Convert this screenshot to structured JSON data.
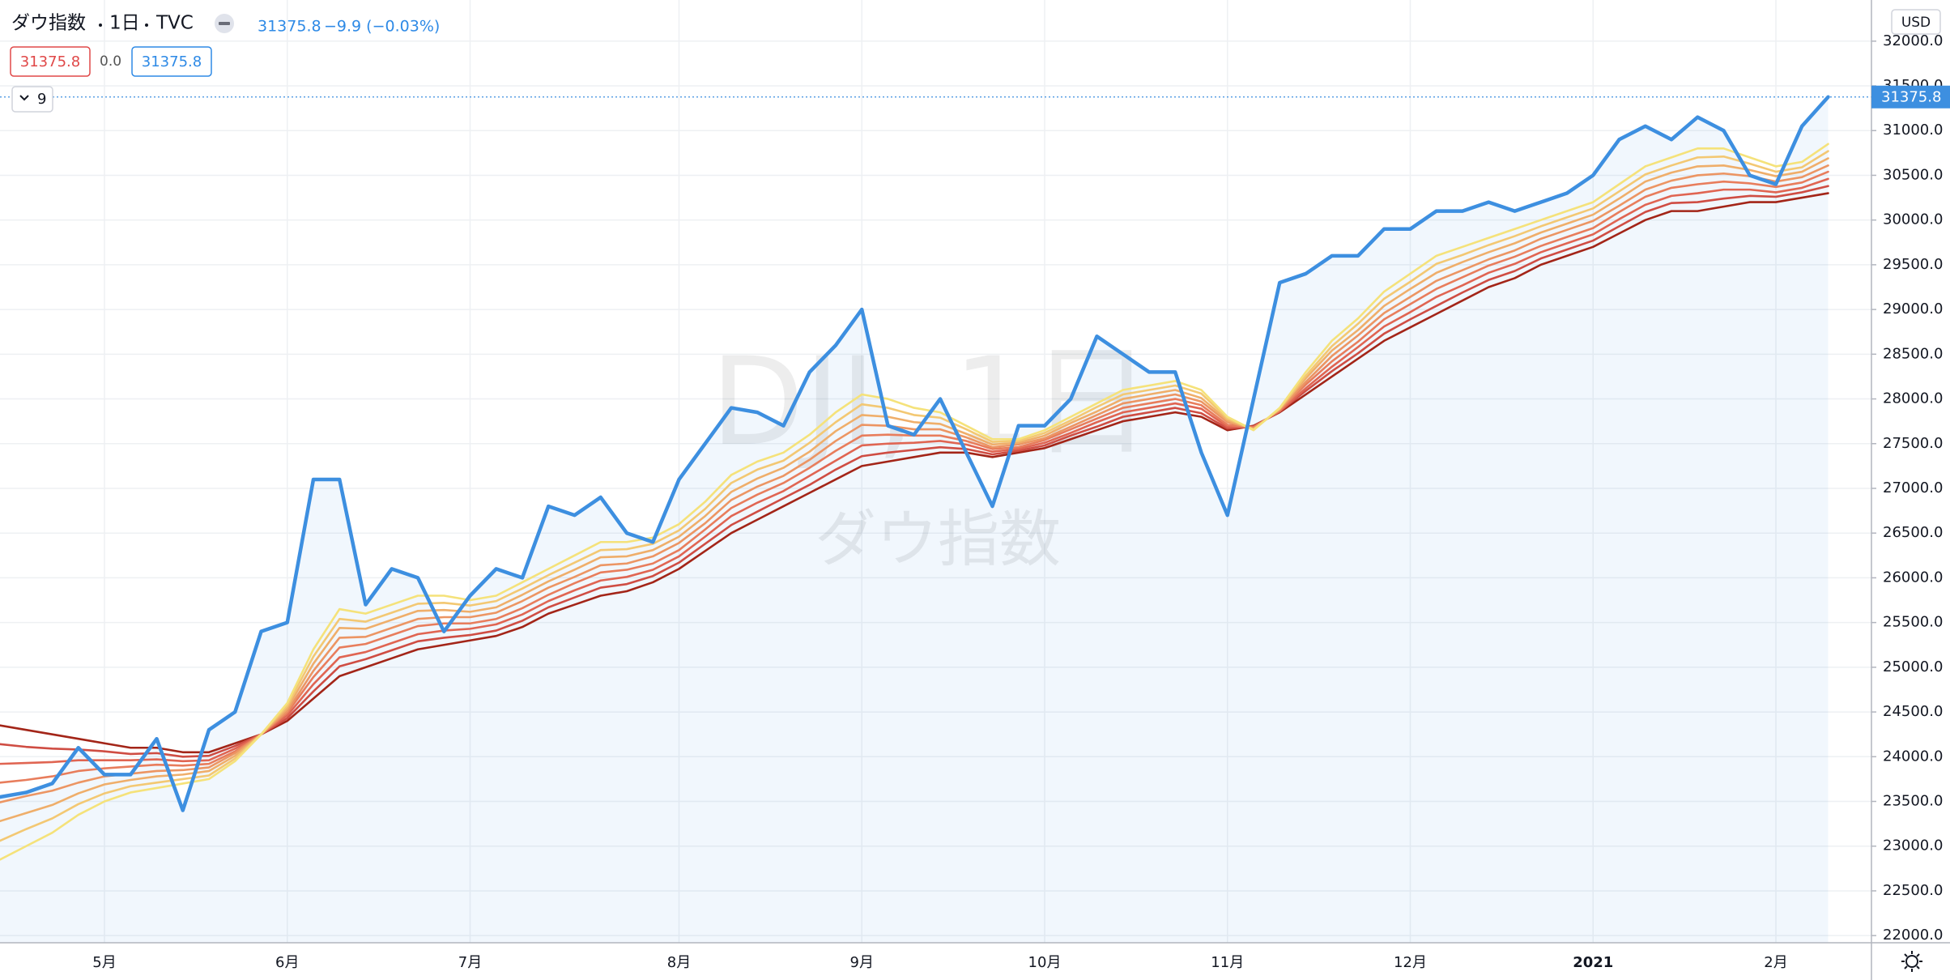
{
  "chart_data": {
    "type": "line",
    "title": "ダウ指数",
    "interval": "1日",
    "source": "TVC",
    "change": "−9.9 (−0.03%)",
    "indicator_value": "0.0",
    "indicator_count": 9,
    "currency": "USD",
    "watermark": "DJI, 1日",
    "grid": true,
    "categories": [
      null,
      null,
      null,
      null,
      "5月",
      null,
      null,
      null,
      null,
      null,
      null,
      "6月",
      null,
      null,
      null,
      null,
      null,
      null,
      "7月",
      null,
      null,
      null,
      null,
      null,
      null,
      null,
      "8月",
      null,
      null,
      null,
      null,
      null,
      null,
      "9月",
      null,
      null,
      null,
      null,
      null,
      null,
      "10月",
      null,
      null,
      null,
      null,
      null,
      null,
      "11月",
      null,
      null,
      null,
      null,
      null,
      null,
      "12月",
      null,
      null,
      null,
      null,
      null,
      null,
      "2021",
      null,
      null,
      null,
      null,
      null,
      null,
      "2月",
      null,
      null
    ],
    "ylim": [
      21920,
      32460
    ],
    "yticks": [
      {
        "value": 22000,
        "label": "22000.0"
      },
      {
        "value": 22500,
        "label": "22500.0"
      },
      {
        "value": 23000,
        "label": "23000.0"
      },
      {
        "value": 23500,
        "label": "23500.0"
      },
      {
        "value": 24000,
        "label": "24000.0"
      },
      {
        "value": 24500,
        "label": "24500.0"
      },
      {
        "value": 25000,
        "label": "25000.0"
      },
      {
        "value": 25500,
        "label": "25500.0"
      },
      {
        "value": 26000,
        "label": "26000.0"
      },
      {
        "value": 26500,
        "label": "26500.0"
      },
      {
        "value": 27000,
        "label": "27000.0"
      },
      {
        "value": 27500,
        "label": "27500.0"
      },
      {
        "value": 28000,
        "label": "28000.0"
      },
      {
        "value": 28500,
        "label": "28500.0"
      },
      {
        "value": 29000,
        "label": "29000.0"
      },
      {
        "value": 29500,
        "label": "29500.0"
      },
      {
        "value": 30000,
        "label": "30000.0"
      },
      {
        "value": 30500,
        "label": "30500.0"
      },
      {
        "value": 31000,
        "label": "31000.0"
      },
      {
        "value": 31500,
        "label": "31500.0"
      },
      {
        "value": 32000,
        "label": "32000.0"
      }
    ],
    "series": [
      {
        "color": "#3d8fe0",
        "values": [
          23550,
          23600,
          23700,
          24100,
          23800,
          23800,
          24200,
          23400,
          24300,
          24500,
          25400,
          25500,
          27100,
          27100,
          25700,
          26100,
          26000,
          25400,
          25800,
          26100,
          26000,
          26800,
          26700,
          26900,
          26500,
          26400,
          27100,
          27500,
          27900,
          27850,
          27700,
          28300,
          28600,
          29000,
          27700,
          27600,
          28000,
          27400,
          26800,
          27700,
          27700,
          28000,
          28700,
          28500,
          28300,
          28300,
          27400,
          26700,
          28000,
          29300,
          29400,
          29600,
          29600,
          29900,
          29900,
          30100,
          30100,
          30200,
          30100,
          30200,
          30300,
          30500,
          30900,
          31050,
          30900,
          31150,
          31000,
          30500,
          30400,
          31050,
          31375.8
        ]
      },
      {
        "color": "#f5e27a",
        "values": [
          22850,
          23000,
          23150,
          23350,
          23500,
          23600,
          23650,
          23700,
          23750,
          23950,
          24250,
          24600,
          25200,
          25650,
          25600,
          25700,
          25800,
          25800,
          25750,
          25800,
          25950,
          26100,
          26250,
          26400,
          26400,
          26450,
          26600,
          26850,
          27150,
          27300,
          27400,
          27600,
          27850,
          28050,
          28000,
          27900,
          27850,
          27700,
          27550,
          27550,
          27650,
          27800,
          27950,
          28100,
          28150,
          28200,
          28100,
          27800,
          27650,
          27900,
          28300,
          28650,
          28900,
          29200,
          29400,
          29600,
          29700,
          29800,
          29900,
          30000,
          30100,
          30200,
          30400,
          30600,
          30700,
          30800,
          30800,
          30700,
          30600,
          30650,
          30850
        ]
      },
      {
        "color": "#f3c873",
        "values": [
          23060,
          23190,
          23310,
          23470,
          23590,
          23670,
          23710,
          23750,
          23790,
          23980,
          24250,
          24570,
          25120,
          25540,
          25510,
          25610,
          25710,
          25720,
          25690,
          25740,
          25880,
          26030,
          26170,
          26310,
          26320,
          26380,
          26530,
          26770,
          27060,
          27210,
          27310,
          27510,
          27740,
          27940,
          27900,
          27820,
          27790,
          27660,
          27520,
          27530,
          27620,
          27760,
          27910,
          28050,
          28100,
          28150,
          28060,
          27780,
          27660,
          27890,
          28260,
          28590,
          28840,
          29120,
          29310,
          29510,
          29610,
          29720,
          29820,
          29930,
          30030,
          30130,
          30320,
          30510,
          30610,
          30700,
          30710,
          30630,
          30540,
          30590,
          30770
        ]
      },
      {
        "color": "#efae6a",
        "values": [
          23280,
          23370,
          23460,
          23590,
          23690,
          23740,
          23780,
          23800,
          23840,
          24010,
          24250,
          24540,
          25040,
          25440,
          25430,
          25530,
          25630,
          25640,
          25620,
          25670,
          25810,
          25960,
          26090,
          26230,
          26240,
          26310,
          26460,
          26690,
          26960,
          27110,
          27230,
          27410,
          27640,
          27820,
          27800,
          27740,
          27720,
          27610,
          27490,
          27510,
          27590,
          27730,
          27860,
          28000,
          28050,
          28100,
          28010,
          27760,
          27660,
          27890,
          28230,
          28540,
          28770,
          29040,
          29230,
          29410,
          29530,
          29640,
          29740,
          29860,
          29960,
          30060,
          30240,
          30430,
          30530,
          30600,
          30610,
          30560,
          30490,
          30540,
          30690
        ]
      },
      {
        "color": "#ec9563",
        "values": [
          23490,
          23560,
          23620,
          23710,
          23780,
          23810,
          23840,
          23850,
          23880,
          24040,
          24250,
          24510,
          24960,
          25330,
          25340,
          25440,
          25540,
          25560,
          25560,
          25610,
          25740,
          25890,
          26010,
          26140,
          26160,
          26240,
          26390,
          26610,
          26870,
          27020,
          27140,
          27320,
          27530,
          27710,
          27700,
          27660,
          27660,
          27570,
          27460,
          27490,
          27560,
          27690,
          27820,
          27950,
          28000,
          28050,
          27970,
          27740,
          27670,
          27880,
          28190,
          28480,
          28710,
          28960,
          29140,
          29320,
          29440,
          29560,
          29660,
          29790,
          29890,
          29990,
          30160,
          30340,
          30440,
          30500,
          30520,
          30490,
          30430,
          30480,
          30610
        ]
      },
      {
        "color": "#e87d5c",
        "values": [
          23710,
          23740,
          23780,
          23840,
          23870,
          23890,
          23910,
          23900,
          23920,
          24060,
          24250,
          24490,
          24890,
          25220,
          25260,
          25360,
          25460,
          25490,
          25490,
          25540,
          25660,
          25810,
          25940,
          26060,
          26090,
          26160,
          26310,
          26540,
          26780,
          26930,
          27060,
          27230,
          27420,
          27590,
          27600,
          27590,
          27590,
          27530,
          27440,
          27460,
          27540,
          27660,
          27780,
          27900,
          27950,
          28000,
          27930,
          27710,
          27680,
          27870,
          28160,
          28420,
          28640,
          28890,
          29060,
          29230,
          29360,
          29490,
          29590,
          29710,
          29810,
          29910,
          30090,
          30260,
          30360,
          30400,
          30430,
          30410,
          30370,
          30420,
          30540
        ]
      },
      {
        "color": "#e06552",
        "values": [
          23920,
          23930,
          23940,
          23960,
          23960,
          23960,
          23970,
          23950,
          23960,
          24090,
          24250,
          24460,
          24810,
          25110,
          25170,
          25270,
          25370,
          25410,
          25430,
          25480,
          25590,
          25740,
          25860,
          25970,
          26010,
          26090,
          26240,
          26460,
          26690,
          26840,
          26970,
          27140,
          27310,
          27480,
          27500,
          27510,
          27530,
          27490,
          27410,
          27440,
          27510,
          27620,
          27740,
          27850,
          27900,
          27950,
          27890,
          27690,
          27690,
          27860,
          28120,
          28360,
          28580,
          28810,
          28970,
          29140,
          29270,
          29410,
          29510,
          29640,
          29740,
          29840,
          30010,
          30170,
          30270,
          30300,
          30340,
          30340,
          30310,
          30360,
          30460
        ]
      },
      {
        "color": "#cf4d43",
        "values": [
          24140,
          24110,
          24090,
          24080,
          24060,
          24030,
          24040,
          24000,
          24010,
          24120,
          24250,
          24430,
          24730,
          25010,
          25090,
          25190,
          25290,
          25330,
          25360,
          25410,
          25520,
          25670,
          25780,
          25890,
          25930,
          26020,
          26170,
          26380,
          26590,
          26740,
          26890,
          27040,
          27210,
          27360,
          27400,
          27430,
          27460,
          27440,
          27380,
          27420,
          27480,
          27590,
          27690,
          27800,
          27850,
          27900,
          27840,
          27670,
          27690,
          27860,
          28090,
          28310,
          28510,
          28730,
          28890,
          29040,
          29190,
          29330,
          29430,
          29570,
          29670,
          29770,
          29930,
          30090,
          30190,
          30200,
          30240,
          30270,
          30260,
          30310,
          30380
        ]
      },
      {
        "color": "#a32518",
        "values": [
          24350,
          24300,
          24250,
          24200,
          24150,
          24100,
          24100,
          24050,
          24050,
          24150,
          24250,
          24400,
          24650,
          24900,
          25000,
          25100,
          25200,
          25250,
          25300,
          25350,
          25450,
          25600,
          25700,
          25800,
          25850,
          25950,
          26100,
          26300,
          26500,
          26650,
          26800,
          26950,
          27100,
          27250,
          27300,
          27350,
          27400,
          27400,
          27350,
          27400,
          27450,
          27550,
          27650,
          27750,
          27800,
          27850,
          27800,
          27650,
          27700,
          27850,
          28050,
          28250,
          28450,
          28650,
          28800,
          28950,
          29100,
          29250,
          29350,
          29500,
          29600,
          29700,
          29850,
          30000,
          30100,
          30100,
          30150,
          30200,
          30200,
          30250,
          30300
        ]
      }
    ]
  }
}
